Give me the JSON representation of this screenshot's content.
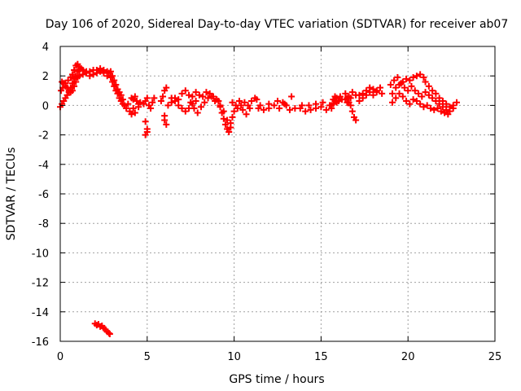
{
  "chart_data": {
    "type": "scatter",
    "title": "Day 106 of 2020, Sidereal Day-to-day VTEC variation (SDTVAR) for receiver ab07",
    "xlabel": "GPS time / hours",
    "ylabel": "SDTVAR / TECUs",
    "xlim": [
      0,
      25
    ],
    "ylim": [
      -16,
      4
    ],
    "xticks": [
      0,
      5,
      10,
      15,
      20,
      25
    ],
    "yticks": [
      4,
      2,
      0,
      -2,
      -4,
      -6,
      -8,
      -10,
      -12,
      -14,
      -16
    ],
    "grid": true,
    "marker": "+",
    "color": "#ff0000",
    "series": [
      {
        "name": "SDTVAR",
        "points": [
          [
            0.0,
            -0.1
          ],
          [
            0.1,
            0.1
          ],
          [
            0.2,
            0.3
          ],
          [
            0.3,
            0.5
          ],
          [
            0.4,
            0.7
          ],
          [
            0.5,
            0.9
          ],
          [
            0.6,
            1.2
          ],
          [
            0.7,
            1.5
          ],
          [
            0.8,
            1.8
          ],
          [
            0.9,
            2.0
          ],
          [
            1.0,
            2.3
          ],
          [
            1.1,
            2.4
          ],
          [
            1.2,
            2.5
          ],
          [
            0.05,
            1.0
          ],
          [
            0.15,
            1.2
          ],
          [
            0.3,
            1.5
          ],
          [
            0.45,
            1.7
          ],
          [
            0.6,
            1.9
          ],
          [
            0.7,
            2.1
          ],
          [
            0.8,
            2.4
          ],
          [
            0.9,
            2.7
          ],
          [
            1.0,
            2.8
          ],
          [
            1.1,
            2.6
          ],
          [
            0.1,
            1.6
          ],
          [
            0.2,
            1.5
          ],
          [
            0.3,
            1.3
          ],
          [
            0.4,
            1.2
          ],
          [
            0.5,
            1.0
          ],
          [
            0.6,
            0.9
          ],
          [
            0.7,
            1.0
          ],
          [
            0.8,
            1.3
          ],
          [
            0.9,
            1.6
          ],
          [
            1.0,
            1.9
          ],
          [
            1.1,
            2.0
          ],
          [
            1.3,
            2.1
          ],
          [
            1.5,
            2.2
          ],
          [
            1.7,
            2.3
          ],
          [
            1.9,
            2.4
          ],
          [
            2.1,
            2.4
          ],
          [
            2.3,
            2.3
          ],
          [
            2.5,
            2.4
          ],
          [
            2.7,
            2.3
          ],
          [
            2.8,
            2.2
          ],
          [
            1.3,
            2.4
          ],
          [
            1.5,
            2.3
          ],
          [
            1.7,
            2.0
          ],
          [
            1.9,
            2.1
          ],
          [
            2.1,
            2.2
          ],
          [
            2.3,
            2.5
          ],
          [
            2.5,
            2.2
          ],
          [
            2.7,
            2.0
          ],
          [
            2.9,
            1.9
          ],
          [
            3.0,
            1.6
          ],
          [
            3.1,
            1.3
          ],
          [
            3.2,
            1.0
          ],
          [
            3.3,
            0.8
          ],
          [
            3.4,
            0.5
          ],
          [
            3.5,
            0.3
          ],
          [
            3.6,
            0.1
          ],
          [
            3.7,
            0.0
          ],
          [
            2.9,
            2.3
          ],
          [
            3.0,
            2.0
          ],
          [
            3.1,
            1.7
          ],
          [
            3.2,
            1.4
          ],
          [
            3.3,
            1.1
          ],
          [
            3.4,
            0.9
          ],
          [
            3.5,
            0.7
          ],
          [
            3.6,
            0.4
          ],
          [
            3.8,
            -0.2
          ],
          [
            3.9,
            0.1
          ],
          [
            4.0,
            -0.4
          ],
          [
            4.1,
            -0.6
          ],
          [
            4.2,
            0.4
          ],
          [
            4.3,
            0.6
          ],
          [
            4.4,
            0.3
          ],
          [
            4.5,
            -0.1
          ],
          [
            4.6,
            0.2
          ],
          [
            4.1,
            0.5
          ],
          [
            4.2,
            -0.2
          ],
          [
            4.3,
            -0.5
          ],
          [
            4.5,
            0.1
          ],
          [
            4.9,
            -1.1
          ],
          [
            5.0,
            -1.6
          ],
          [
            4.9,
            -2.0
          ],
          [
            5.0,
            -1.8
          ],
          [
            4.8,
            0.1
          ],
          [
            4.9,
            0.3
          ],
          [
            5.0,
            0.5
          ],
          [
            5.1,
            0.0
          ],
          [
            5.2,
            -0.2
          ],
          [
            5.3,
            0.2
          ],
          [
            5.4,
            0.5
          ],
          [
            5.8,
            0.3
          ],
          [
            5.9,
            0.6
          ],
          [
            6.0,
            1.0
          ],
          [
            6.1,
            1.2
          ],
          [
            6.0,
            -1.0
          ],
          [
            6.1,
            -1.3
          ],
          [
            6.0,
            -0.7
          ],
          [
            6.2,
            0.0
          ],
          [
            6.4,
            0.2
          ],
          [
            6.6,
            0.5
          ],
          [
            6.8,
            0.4
          ],
          [
            7.0,
            0.8
          ],
          [
            7.2,
            1.0
          ],
          [
            7.4,
            0.7
          ],
          [
            7.6,
            0.6
          ],
          [
            7.8,
            0.9
          ],
          [
            8.0,
            0.7
          ],
          [
            6.4,
            0.5
          ],
          [
            6.6,
            0.3
          ],
          [
            6.8,
            0.0
          ],
          [
            7.0,
            -0.2
          ],
          [
            7.2,
            -0.4
          ],
          [
            7.4,
            -0.2
          ],
          [
            7.6,
            0.1
          ],
          [
            7.8,
            0.3
          ],
          [
            7.5,
            0.2
          ],
          [
            7.7,
            -0.2
          ],
          [
            7.9,
            -0.5
          ],
          [
            8.1,
            -0.1
          ],
          [
            8.3,
            0.2
          ],
          [
            8.5,
            0.5
          ],
          [
            8.7,
            0.6
          ],
          [
            8.9,
            0.3
          ],
          [
            8.2,
            0.6
          ],
          [
            8.4,
            0.9
          ],
          [
            8.6,
            0.8
          ],
          [
            8.8,
            0.6
          ],
          [
            9.0,
            0.4
          ],
          [
            9.1,
            0.3
          ],
          [
            9.2,
            -0.1
          ],
          [
            9.3,
            -0.5
          ],
          [
            9.4,
            -0.9
          ],
          [
            9.5,
            -1.3
          ],
          [
            9.6,
            -1.6
          ],
          [
            9.7,
            -1.8
          ],
          [
            9.8,
            -1.5
          ],
          [
            9.2,
            0.0
          ],
          [
            9.4,
            -0.4
          ],
          [
            9.6,
            -1.0
          ],
          [
            9.8,
            -1.2
          ],
          [
            9.9,
            -0.8
          ],
          [
            10.0,
            -0.4
          ],
          [
            10.2,
            -0.2
          ],
          [
            10.4,
            0.0
          ],
          [
            10.6,
            0.2
          ],
          [
            10.8,
            0.0
          ],
          [
            11.0,
            0.3
          ],
          [
            11.2,
            0.5
          ],
          [
            11.3,
            0.4
          ],
          [
            9.9,
            0.2
          ],
          [
            10.1,
            0.0
          ],
          [
            10.3,
            0.3
          ],
          [
            10.5,
            -0.3
          ],
          [
            10.7,
            -0.6
          ],
          [
            10.9,
            -0.2
          ],
          [
            11.4,
            -0.2
          ],
          [
            11.7,
            -0.3
          ],
          [
            12.0,
            -0.2
          ],
          [
            12.3,
            0.0
          ],
          [
            12.6,
            -0.2
          ],
          [
            12.9,
            0.1
          ],
          [
            13.2,
            -0.3
          ],
          [
            13.5,
            -0.2
          ],
          [
            11.5,
            0.0
          ],
          [
            12.0,
            0.1
          ],
          [
            12.5,
            0.3
          ],
          [
            12.8,
            0.2
          ],
          [
            13.3,
            0.6
          ],
          [
            13.0,
            0.0
          ],
          [
            13.8,
            -0.2
          ],
          [
            14.1,
            -0.4
          ],
          [
            14.4,
            -0.3
          ],
          [
            14.7,
            -0.2
          ],
          [
            15.0,
            -0.1
          ],
          [
            15.3,
            -0.3
          ],
          [
            15.6,
            -0.2
          ],
          [
            13.9,
            0.0
          ],
          [
            14.3,
            0.0
          ],
          [
            14.7,
            0.1
          ],
          [
            15.1,
            0.2
          ],
          [
            15.5,
            0.0
          ],
          [
            15.7,
            0.1
          ],
          [
            15.8,
            0.3
          ],
          [
            15.9,
            0.5
          ],
          [
            16.0,
            0.3
          ],
          [
            16.1,
            0.6
          ],
          [
            16.2,
            0.4
          ],
          [
            15.6,
            0.0
          ],
          [
            15.7,
            0.4
          ],
          [
            15.8,
            0.6
          ],
          [
            15.9,
            0.2
          ],
          [
            16.4,
            0.8
          ],
          [
            16.5,
            0.5
          ],
          [
            16.6,
            0.2
          ],
          [
            16.7,
            0.0
          ],
          [
            16.8,
            -0.4
          ],
          [
            16.9,
            -0.8
          ],
          [
            17.0,
            -1.0
          ],
          [
            16.4,
            0.4
          ],
          [
            16.5,
            0.2
          ],
          [
            16.6,
            0.6
          ],
          [
            16.8,
            0.9
          ],
          [
            17.0,
            0.7
          ],
          [
            16.7,
            0.5
          ],
          [
            17.2,
            0.7
          ],
          [
            17.4,
            0.8
          ],
          [
            17.6,
            1.0
          ],
          [
            17.8,
            1.2
          ],
          [
            18.0,
            1.1
          ],
          [
            18.2,
            1.0
          ],
          [
            18.4,
            1.2
          ],
          [
            18.5,
            0.8
          ],
          [
            17.2,
            0.3
          ],
          [
            17.4,
            0.5
          ],
          [
            17.6,
            0.7
          ],
          [
            17.8,
            0.9
          ],
          [
            18.0,
            0.7
          ],
          [
            18.2,
            0.9
          ],
          [
            19.1,
            0.8
          ],
          [
            19.3,
            1.2
          ],
          [
            19.5,
            1.4
          ],
          [
            19.7,
            1.6
          ],
          [
            19.9,
            1.8
          ],
          [
            20.1,
            1.7
          ],
          [
            20.3,
            1.9
          ],
          [
            20.5,
            2.0
          ],
          [
            20.7,
            2.1
          ],
          [
            20.9,
            1.9
          ],
          [
            19.0,
            1.4
          ],
          [
            19.2,
            1.7
          ],
          [
            19.4,
            1.9
          ],
          [
            19.6,
            1.5
          ],
          [
            19.8,
            1.2
          ],
          [
            20.0,
            1.0
          ],
          [
            20.2,
            1.3
          ],
          [
            19.1,
            0.2
          ],
          [
            19.3,
            0.5
          ],
          [
            19.5,
            0.8
          ],
          [
            19.7,
            0.6
          ],
          [
            19.9,
            0.3
          ],
          [
            20.1,
            0.1
          ],
          [
            20.3,
            0.4
          ],
          [
            21.0,
            1.6
          ],
          [
            21.2,
            1.3
          ],
          [
            21.4,
            1.0
          ],
          [
            21.6,
            0.8
          ],
          [
            21.8,
            0.5
          ],
          [
            22.0,
            0.3
          ],
          [
            22.2,
            0.1
          ],
          [
            22.4,
            -0.1
          ],
          [
            22.6,
            0.0
          ],
          [
            22.8,
            0.2
          ],
          [
            20.4,
            1.0
          ],
          [
            20.6,
            0.8
          ],
          [
            20.8,
            0.6
          ],
          [
            21.0,
            0.9
          ],
          [
            21.2,
            0.7
          ],
          [
            21.4,
            0.5
          ],
          [
            21.6,
            0.3
          ],
          [
            21.8,
            0.1
          ],
          [
            22.0,
            -0.1
          ],
          [
            22.2,
            -0.3
          ],
          [
            22.4,
            -0.4
          ],
          [
            22.6,
            -0.2
          ],
          [
            20.5,
            0.3
          ],
          [
            20.7,
            0.1
          ],
          [
            20.9,
            -0.1
          ],
          [
            21.1,
            0.0
          ],
          [
            21.3,
            -0.2
          ],
          [
            21.5,
            -0.3
          ],
          [
            21.7,
            -0.2
          ],
          [
            21.9,
            -0.4
          ],
          [
            22.1,
            -0.5
          ],
          [
            22.3,
            -0.6
          ],
          [
            2.0,
            -14.8
          ],
          [
            2.1,
            -14.9
          ],
          [
            2.2,
            -14.85
          ],
          [
            2.3,
            -15.0
          ],
          [
            2.4,
            -14.95
          ],
          [
            2.5,
            -15.1
          ],
          [
            2.6,
            -15.2
          ],
          [
            2.7,
            -15.35
          ],
          [
            2.8,
            -15.45
          ],
          [
            2.85,
            -15.5
          ]
        ]
      }
    ]
  }
}
